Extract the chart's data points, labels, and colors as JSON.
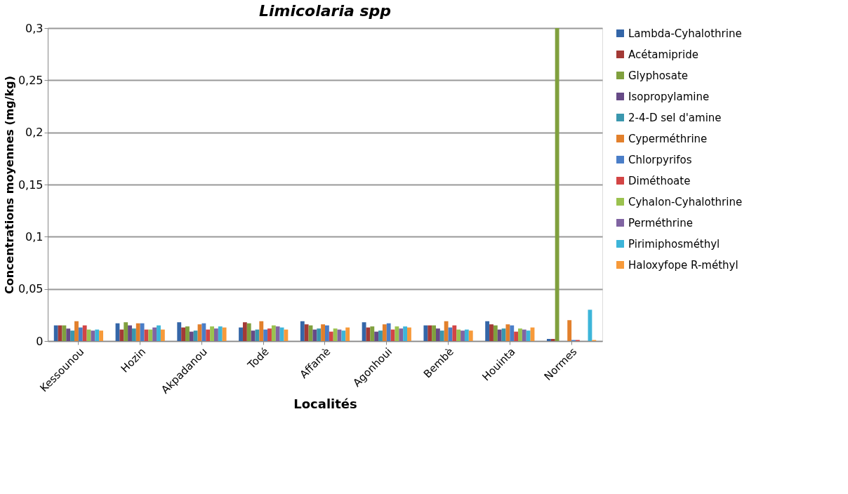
{
  "chart_data": {
    "type": "bar",
    "title": "Limicolaria spp",
    "xlabel": "Localités",
    "ylabel": "Concentrations moyennes (mg/kg)",
    "categories": [
      "Kessounou",
      "Hozin",
      "Akpadanou",
      "Todé",
      "Affamè",
      "Agonhoui",
      "Bembè",
      "Houinta",
      "Normes"
    ],
    "series": [
      {
        "name": "Lambda-Cyhalothrine",
        "color": "#3466a8",
        "values": [
          0.015,
          0.017,
          0.018,
          0.013,
          0.019,
          0.018,
          0.015,
          0.019,
          0.002
        ]
      },
      {
        "name": "Acétamipride",
        "color": "#a33a36",
        "values": [
          0.015,
          0.011,
          0.013,
          0.018,
          0.016,
          0.013,
          0.015,
          0.016,
          0.002
        ]
      },
      {
        "name": "Glyphosate",
        "color": "#80a03e",
        "values": [
          0.015,
          0.018,
          0.014,
          0.017,
          0.015,
          0.014,
          0.015,
          0.015,
          0.3
        ]
      },
      {
        "name": "Isopropylamine",
        "color": "#664a86",
        "values": [
          0.012,
          0.015,
          0.009,
          0.01,
          0.011,
          0.009,
          0.012,
          0.011,
          null
        ]
      },
      {
        "name": "2-4-D sel d'amine",
        "color": "#3a97ae",
        "values": [
          0.01,
          0.012,
          0.01,
          0.011,
          0.012,
          0.01,
          0.01,
          0.012,
          null
        ]
      },
      {
        "name": "Cyperméthrine",
        "color": "#e2802c",
        "values": [
          0.019,
          0.017,
          0.016,
          0.019,
          0.016,
          0.016,
          0.019,
          0.016,
          0.02
        ]
      },
      {
        "name": "Chlorpyrifos",
        "color": "#4a7ec8",
        "values": [
          0.013,
          0.017,
          0.017,
          0.011,
          0.015,
          0.017,
          0.013,
          0.015,
          0.001
        ]
      },
      {
        "name": "Diméthoate",
        "color": "#d34545",
        "values": [
          0.015,
          0.011,
          0.011,
          0.012,
          0.009,
          0.011,
          0.015,
          0.009,
          0.001
        ]
      },
      {
        "name": "Cyhalon-Cyhalothrine",
        "color": "#9bc24f",
        "values": [
          0.011,
          0.011,
          0.014,
          0.015,
          0.012,
          0.014,
          0.011,
          0.012,
          null
        ]
      },
      {
        "name": "Perméthrine",
        "color": "#8064a2",
        "values": [
          0.01,
          0.013,
          0.012,
          0.014,
          0.011,
          0.012,
          0.01,
          0.011,
          null
        ]
      },
      {
        "name": "Pirimiphosméthyl",
        "color": "#3db5d9",
        "values": [
          0.011,
          0.015,
          0.014,
          0.013,
          0.01,
          0.014,
          0.011,
          0.01,
          0.03
        ]
      },
      {
        "name": "Haloxyfope R-méthyl",
        "color": "#f79a3a",
        "values": [
          0.01,
          0.011,
          0.013,
          0.011,
          0.013,
          0.013,
          0.01,
          0.013,
          0.001
        ]
      }
    ],
    "ylim": [
      0,
      0.3
    ],
    "yticks": [
      0,
      {
        "value": 0.05,
        "label": "0,05"
      },
      {
        "value": 0.1,
        "label": "0,1"
      },
      {
        "value": 0.15,
        "label": "0,15"
      },
      {
        "value": 0.2,
        "label": "0,2"
      },
      {
        "value": 0.25,
        "label": "0,25"
      },
      {
        "value": 0.3,
        "label": "0,3"
      }
    ],
    "grid": "y",
    "legend": "right"
  }
}
